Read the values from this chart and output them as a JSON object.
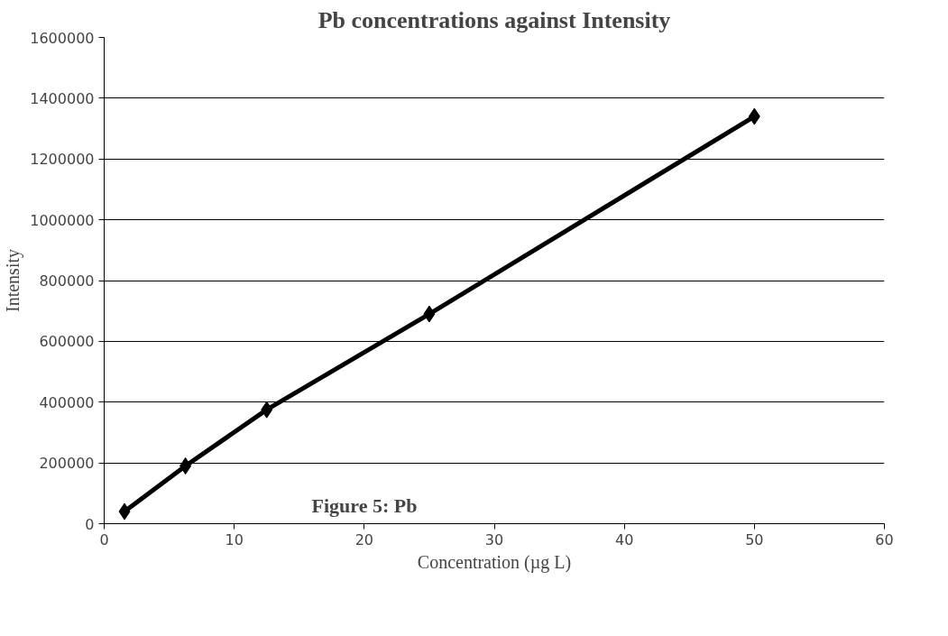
{
  "chart_data": {
    "type": "line",
    "title": "Pb concentrations against Intensity",
    "xlabel": "Concentration (µg L)",
    "ylabel": "Intensity",
    "x": [
      1.5625,
      6.25,
      12.5,
      25,
      50
    ],
    "series": [
      {
        "color": "#000000",
        "values": [
          40000,
          190000,
          375000,
          690000,
          1340000
        ]
      }
    ],
    "xlim": [
      0,
      60
    ],
    "xticks": [
      0,
      10,
      20,
      30,
      40,
      50,
      60
    ],
    "ylim": [
      0,
      1600000
    ],
    "yticks": [
      0,
      200000,
      400000,
      600000,
      800000,
      1000000,
      1200000,
      1400000,
      1600000
    ],
    "grid": "y",
    "marker": "diamond",
    "line_style": "solid",
    "annotations": [
      "Figure 5: Pb"
    ]
  }
}
